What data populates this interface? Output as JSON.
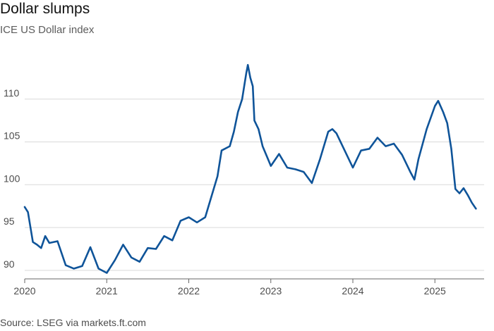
{
  "title": "Dollar slumps",
  "subtitle": "ICE US Dollar index",
  "source": "Source: LSEG via markets.ft.com",
  "colors": {
    "line": "#0f5499",
    "grid": "#d9d9d9",
    "axis": "#666666",
    "text": "#4d4d4d"
  },
  "chart_data": {
    "type": "line",
    "title": "Dollar slumps",
    "subtitle": "ICE US Dollar index",
    "xlabel": "",
    "ylabel": "",
    "ylim": [
      89,
      115
    ],
    "xlim": [
      2020.0,
      2025.6
    ],
    "y_ticks": [
      90,
      95,
      100,
      105,
      110
    ],
    "x_ticks": [
      2020,
      2021,
      2022,
      2023,
      2024,
      2025
    ],
    "grid": "horizontal",
    "legend": "none",
    "x": [
      2020.0,
      2020.04,
      2020.1,
      2020.15,
      2020.2,
      2020.25,
      2020.3,
      2020.4,
      2020.5,
      2020.6,
      2020.7,
      2020.8,
      2020.9,
      2021.0,
      2021.1,
      2021.2,
      2021.3,
      2021.4,
      2021.5,
      2021.6,
      2021.7,
      2021.8,
      2021.9,
      2022.0,
      2022.1,
      2022.2,
      2022.3,
      2022.35,
      2022.4,
      2022.5,
      2022.55,
      2022.6,
      2022.65,
      2022.7,
      2022.72,
      2022.75,
      2022.78,
      2022.8,
      2022.85,
      2022.9,
      2023.0,
      2023.1,
      2023.2,
      2023.3,
      2023.4,
      2023.5,
      2023.6,
      2023.7,
      2023.75,
      2023.8,
      2023.9,
      2024.0,
      2024.1,
      2024.2,
      2024.3,
      2024.4,
      2024.5,
      2024.6,
      2024.7,
      2024.75,
      2024.8,
      2024.9,
      2025.0,
      2025.04,
      2025.1,
      2025.15,
      2025.2,
      2025.25,
      2025.3,
      2025.35,
      2025.4,
      2025.45,
      2025.5
    ],
    "series": [
      {
        "values": [
          97.4,
          96.8,
          93.3,
          93.0,
          92.6,
          94.0,
          93.2,
          93.4,
          90.6,
          90.2,
          90.5,
          92.7,
          90.2,
          89.7,
          91.2,
          93.0,
          91.5,
          91.0,
          92.6,
          92.5,
          94.0,
          93.5,
          95.8,
          96.2,
          95.6,
          96.2,
          99.4,
          101.0,
          104.0,
          104.5,
          106.2,
          108.5,
          110.0,
          113.0,
          114.0,
          112.5,
          111.5,
          107.5,
          106.5,
          104.5,
          102.2,
          103.6,
          102.0,
          101.8,
          101.5,
          100.2,
          103.0,
          106.2,
          106.5,
          106.0,
          104.0,
          102.0,
          104.0,
          104.2,
          105.5,
          104.5,
          104.8,
          103.5,
          101.5,
          100.6,
          103.0,
          106.5,
          109.2,
          109.8,
          108.5,
          107.2,
          104.2,
          99.5,
          99.0,
          99.6,
          98.8,
          97.9,
          97.2
        ]
      }
    ]
  }
}
